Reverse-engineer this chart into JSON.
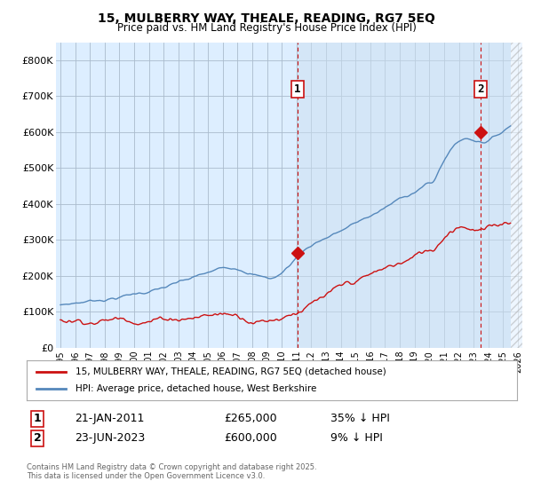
{
  "title": "15, MULBERRY WAY, THEALE, READING, RG7 5EQ",
  "subtitle": "Price paid vs. HM Land Registry's House Price Index (HPI)",
  "ylim": [
    0,
    850000
  ],
  "yticks": [
    0,
    100000,
    200000,
    300000,
    400000,
    500000,
    600000,
    700000,
    800000
  ],
  "ytick_labels": [
    "£0",
    "£100K",
    "£200K",
    "£300K",
    "£400K",
    "£500K",
    "£600K",
    "£700K",
    "£800K"
  ],
  "background_color": "#ffffff",
  "plot_bg_color": "#ddeeff",
  "grid_color": "#aabbcc",
  "hpi_color": "#5588bb",
  "price_color": "#cc1111",
  "marker1_year": 2011.05,
  "marker1_price": 265000,
  "marker2_year": 2023.48,
  "marker2_price": 600000,
  "annotation1": [
    "1",
    "21-JAN-2011",
    "£265,000",
    "35% ↓ HPI"
  ],
  "annotation2": [
    "2",
    "23-JUN-2023",
    "£600,000",
    "9% ↓ HPI"
  ],
  "legend_label1": "15, MULBERRY WAY, THEALE, READING, RG7 5EQ (detached house)",
  "legend_label2": "HPI: Average price, detached house, West Berkshire",
  "footnote": "Contains HM Land Registry data © Crown copyright and database right 2025.\nThis data is licensed under the Open Government Licence v3.0.",
  "xmin": 1995,
  "xmax": 2026,
  "hatch_start": 2025.5
}
